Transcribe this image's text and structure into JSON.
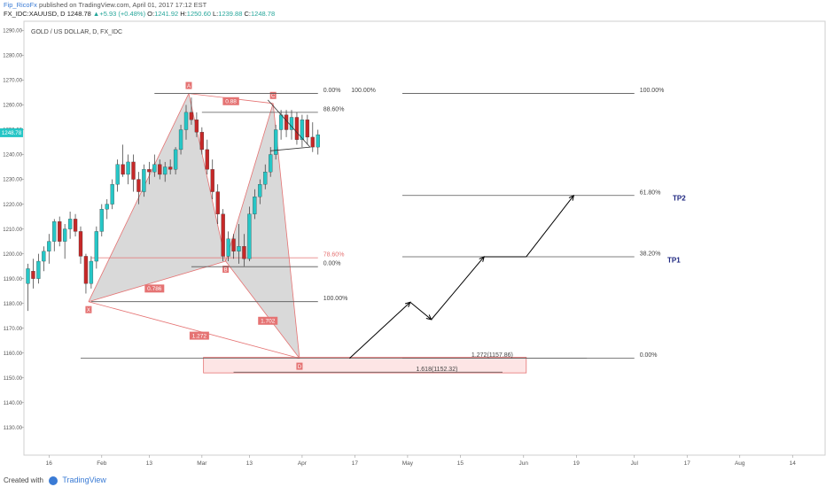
{
  "header": {
    "user": "Fip_RicoFx",
    "published": "published on TradingView.com, April 01, 2017 17:12 EST",
    "symbol": "FX_IDC:XAUUSD, D",
    "last": "1248.78",
    "change": "+5.93 (+0.48%)",
    "o_label": "O:",
    "o": "1241.92",
    "h_label": "H:",
    "h": "1250.60",
    "l_label": "L:",
    "l": "1239.88",
    "c_label": "C:",
    "c": "1248.78"
  },
  "footer": {
    "created": "Created with",
    "brand": "TradingView"
  },
  "colors": {
    "up": "#26c6c6",
    "down": "#c62828",
    "pattern": "#e57373",
    "fill": "#cccccc",
    "arrow": "#000000",
    "tp": "#1a237e",
    "zone": "#fde5e5"
  },
  "chart_data": {
    "type": "candlestick",
    "title": "GOLD / US DOLLAR, D, FX_IDC",
    "price_label": "1248.78",
    "y_ticks": [
      1290,
      1280,
      1270,
      1260,
      1250,
      1240,
      1230,
      1220,
      1210,
      1200,
      1190,
      1180,
      1170,
      1160,
      1150,
      1140,
      1130
    ],
    "y_tick_labels": [
      "1290.00",
      "1280.00",
      "1270.00",
      "1260.00",
      "1250.00",
      "1240.00",
      "1230.00",
      "1220.00",
      "1210.00",
      "1200.00",
      "1190.00",
      "1180.00",
      "1170.00",
      "1160.00",
      "1150.00",
      "1140.00",
      "1130.00"
    ],
    "ylim": [
      1121,
      1293
    ],
    "x_ticks": [
      {
        "bar": 4,
        "label": "16"
      },
      {
        "bar": 14,
        "label": "Feb"
      },
      {
        "bar": 23,
        "label": "13"
      },
      {
        "bar": 33,
        "label": "Mar"
      },
      {
        "bar": 42,
        "label": "13"
      },
      {
        "bar": 52,
        "label": "Apr"
      },
      {
        "bar": 62,
        "label": "17"
      },
      {
        "bar": 72,
        "label": "May"
      },
      {
        "bar": 82,
        "label": "15"
      },
      {
        "bar": 94,
        "label": "Jun"
      },
      {
        "bar": 104,
        "label": "19"
      },
      {
        "bar": 115,
        "label": "Jul"
      },
      {
        "bar": 125,
        "label": "17"
      },
      {
        "bar": 135,
        "label": "Aug"
      },
      {
        "bar": 145,
        "label": "14"
      }
    ],
    "candles": [
      [
        1188,
        1196,
        1177,
        1194
      ],
      [
        1193,
        1198,
        1186,
        1190
      ],
      [
        1190,
        1200,
        1188,
        1197
      ],
      [
        1197,
        1203,
        1193,
        1201
      ],
      [
        1201,
        1208,
        1196,
        1205
      ],
      [
        1205,
        1214,
        1201,
        1213
      ],
      [
        1213,
        1215,
        1203,
        1205
      ],
      [
        1205,
        1212,
        1198,
        1210
      ],
      [
        1210,
        1217,
        1206,
        1214
      ],
      [
        1214,
        1216,
        1207,
        1209
      ],
      [
        1209,
        1211,
        1196,
        1199
      ],
      [
        1199,
        1200,
        1184,
        1188
      ],
      [
        1188,
        1199,
        1186,
        1197
      ],
      [
        1197,
        1211,
        1194,
        1209
      ],
      [
        1209,
        1220,
        1207,
        1218
      ],
      [
        1218,
        1222,
        1214,
        1220
      ],
      [
        1220,
        1230,
        1218,
        1228
      ],
      [
        1228,
        1238,
        1225,
        1236
      ],
      [
        1236,
        1244,
        1231,
        1232
      ],
      [
        1232,
        1240,
        1228,
        1237
      ],
      [
        1237,
        1240,
        1225,
        1230
      ],
      [
        1230,
        1233,
        1220,
        1225
      ],
      [
        1225,
        1236,
        1223,
        1234
      ],
      [
        1234,
        1237,
        1228,
        1233
      ],
      [
        1233,
        1240,
        1231,
        1236
      ],
      [
        1236,
        1238,
        1230,
        1232
      ],
      [
        1232,
        1237,
        1229,
        1235
      ],
      [
        1235,
        1238,
        1232,
        1234
      ],
      [
        1234,
        1243,
        1232,
        1242
      ],
      [
        1242,
        1252,
        1240,
        1250
      ],
      [
        1250,
        1260,
        1246,
        1257
      ],
      [
        1257,
        1263,
        1252,
        1254
      ],
      [
        1254,
        1257,
        1247,
        1249
      ],
      [
        1249,
        1251,
        1240,
        1242
      ],
      [
        1242,
        1246,
        1232,
        1234
      ],
      [
        1234,
        1238,
        1222,
        1225
      ],
      [
        1225,
        1228,
        1212,
        1216
      ],
      [
        1216,
        1218,
        1197,
        1199
      ],
      [
        1199,
        1209,
        1197,
        1206
      ],
      [
        1206,
        1208,
        1198,
        1201
      ],
      [
        1201,
        1212,
        1196,
        1203
      ],
      [
        1203,
        1208,
        1195,
        1198
      ],
      [
        1198,
        1219,
        1197,
        1216
      ],
      [
        1216,
        1226,
        1214,
        1223
      ],
      [
        1223,
        1230,
        1220,
        1228
      ],
      [
        1228,
        1236,
        1226,
        1233
      ],
      [
        1233,
        1243,
        1231,
        1240
      ],
      [
        1240,
        1252,
        1238,
        1250
      ],
      [
        1250,
        1258,
        1246,
        1256
      ],
      [
        1256,
        1258,
        1247,
        1250
      ],
      [
        1250,
        1258,
        1246,
        1255
      ],
      [
        1255,
        1257,
        1244,
        1246
      ],
      [
        1246,
        1256,
        1243,
        1254
      ],
      [
        1254,
        1256,
        1244,
        1247
      ],
      [
        1247,
        1253,
        1241,
        1243
      ],
      [
        1243,
        1250,
        1240,
        1248
      ]
    ],
    "fib_left": {
      "levels": [
        {
          "price": 1264.6,
          "label": "0.00%",
          "x1": 24,
          "x2": 55
        },
        {
          "price": 1264.6,
          "label": "100.00%"
        },
        {
          "price": 1257.0,
          "label": "88.60%",
          "x1": 33,
          "x2": 55
        },
        {
          "price": 1198.4,
          "label": "78.60%",
          "x1": 12,
          "x2": 55
        },
        {
          "price": 1194.8,
          "label": "0.00%",
          "x1": 31,
          "x2": 55
        },
        {
          "price": 1180.7,
          "label": "100.00%",
          "x1": 12,
          "x2": 55
        },
        {
          "price": 1157.9,
          "label": "1.272(1157.86)",
          "x1": 10,
          "x2": 106
        },
        {
          "price": 1152.3,
          "label": "1.618(1152.32)",
          "x1": 39,
          "x2": 90
        }
      ]
    },
    "fib_right": {
      "x1": 71,
      "x2": 115,
      "levels": [
        {
          "price": 1264.6,
          "label": "100.00%"
        },
        {
          "price": 1223.5,
          "label": "61.80%"
        },
        {
          "price": 1198.8,
          "label": "38.20%"
        },
        {
          "price": 1157.9,
          "label": "0.00%"
        }
      ]
    },
    "pattern": {
      "points": [
        {
          "name": "X",
          "bar": 11.5,
          "price": 1180.7
        },
        {
          "name": "A",
          "bar": 30.5,
          "price": 1264.6
        },
        {
          "name": "B",
          "bar": 37.5,
          "price": 1197.0
        },
        {
          "name": "C",
          "bar": 46.5,
          "price": 1260.6
        },
        {
          "name": "D",
          "bar": 51.5,
          "price": 1157.9
        }
      ],
      "ratios": [
        {
          "label": "0.786",
          "bar": 24,
          "price": 1186
        },
        {
          "label": "0.88",
          "bar": 38.5,
          "price": 1261.5
        },
        {
          "label": "1.702",
          "bar": 45.5,
          "price": 1173
        },
        {
          "label": "1.272",
          "bar": 32.5,
          "price": 1167
        }
      ]
    },
    "triangle": [
      [
        45.5,
        1262
      ],
      [
        53.5,
        1243
      ],
      [
        46,
        1241.5
      ]
    ],
    "projection": [
      [
        61,
        1157.9
      ],
      [
        72.5,
        1180.5
      ],
      [
        76.5,
        1173.5
      ],
      [
        86.5,
        1198.8
      ],
      [
        94.5,
        1198.8
      ],
      [
        103.5,
        1223.5
      ]
    ],
    "tp": [
      {
        "label": "TP2",
        "bar": 123.5,
        "price": 1221.5
      },
      {
        "label": "TP1",
        "bar": 122.5,
        "price": 1196.5
      }
    ],
    "zone": {
      "x1": 33.3,
      "x2": 94.5,
      "top": 1158.3,
      "bottom": 1152.0
    }
  }
}
